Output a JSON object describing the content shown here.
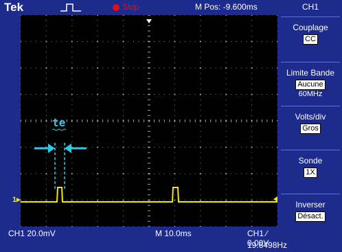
{
  "header": {
    "brand": "Tek",
    "run_status": "Stop",
    "position": "M Pos: -9.600ms"
  },
  "menu": {
    "title": "CH1",
    "items": [
      {
        "label": "Couplage",
        "value": "CC"
      },
      {
        "label": "Limite Bande",
        "value": "Aucune",
        "sub": "60MHz"
      },
      {
        "label": "Volts/div",
        "value": "Gros"
      },
      {
        "label": "Sonde",
        "value": "1X"
      },
      {
        "label": "Inverser",
        "value": "Désact."
      }
    ]
  },
  "footer": {
    "channel_scale": "CH1  20.0mV",
    "time_scale": "M 10.0ms",
    "trigger": "CH1 ∕ 0.00V",
    "frequency": "19.6498Hz"
  },
  "waveform": {
    "channel_marker": "1▸",
    "annotation_label": "te"
  },
  "colors": {
    "trace": "#f5e900",
    "annotation": "#2ec8e6",
    "screen_bg": "#000000",
    "frame_bg": "#1c2b8c",
    "stop": "#e01010"
  }
}
